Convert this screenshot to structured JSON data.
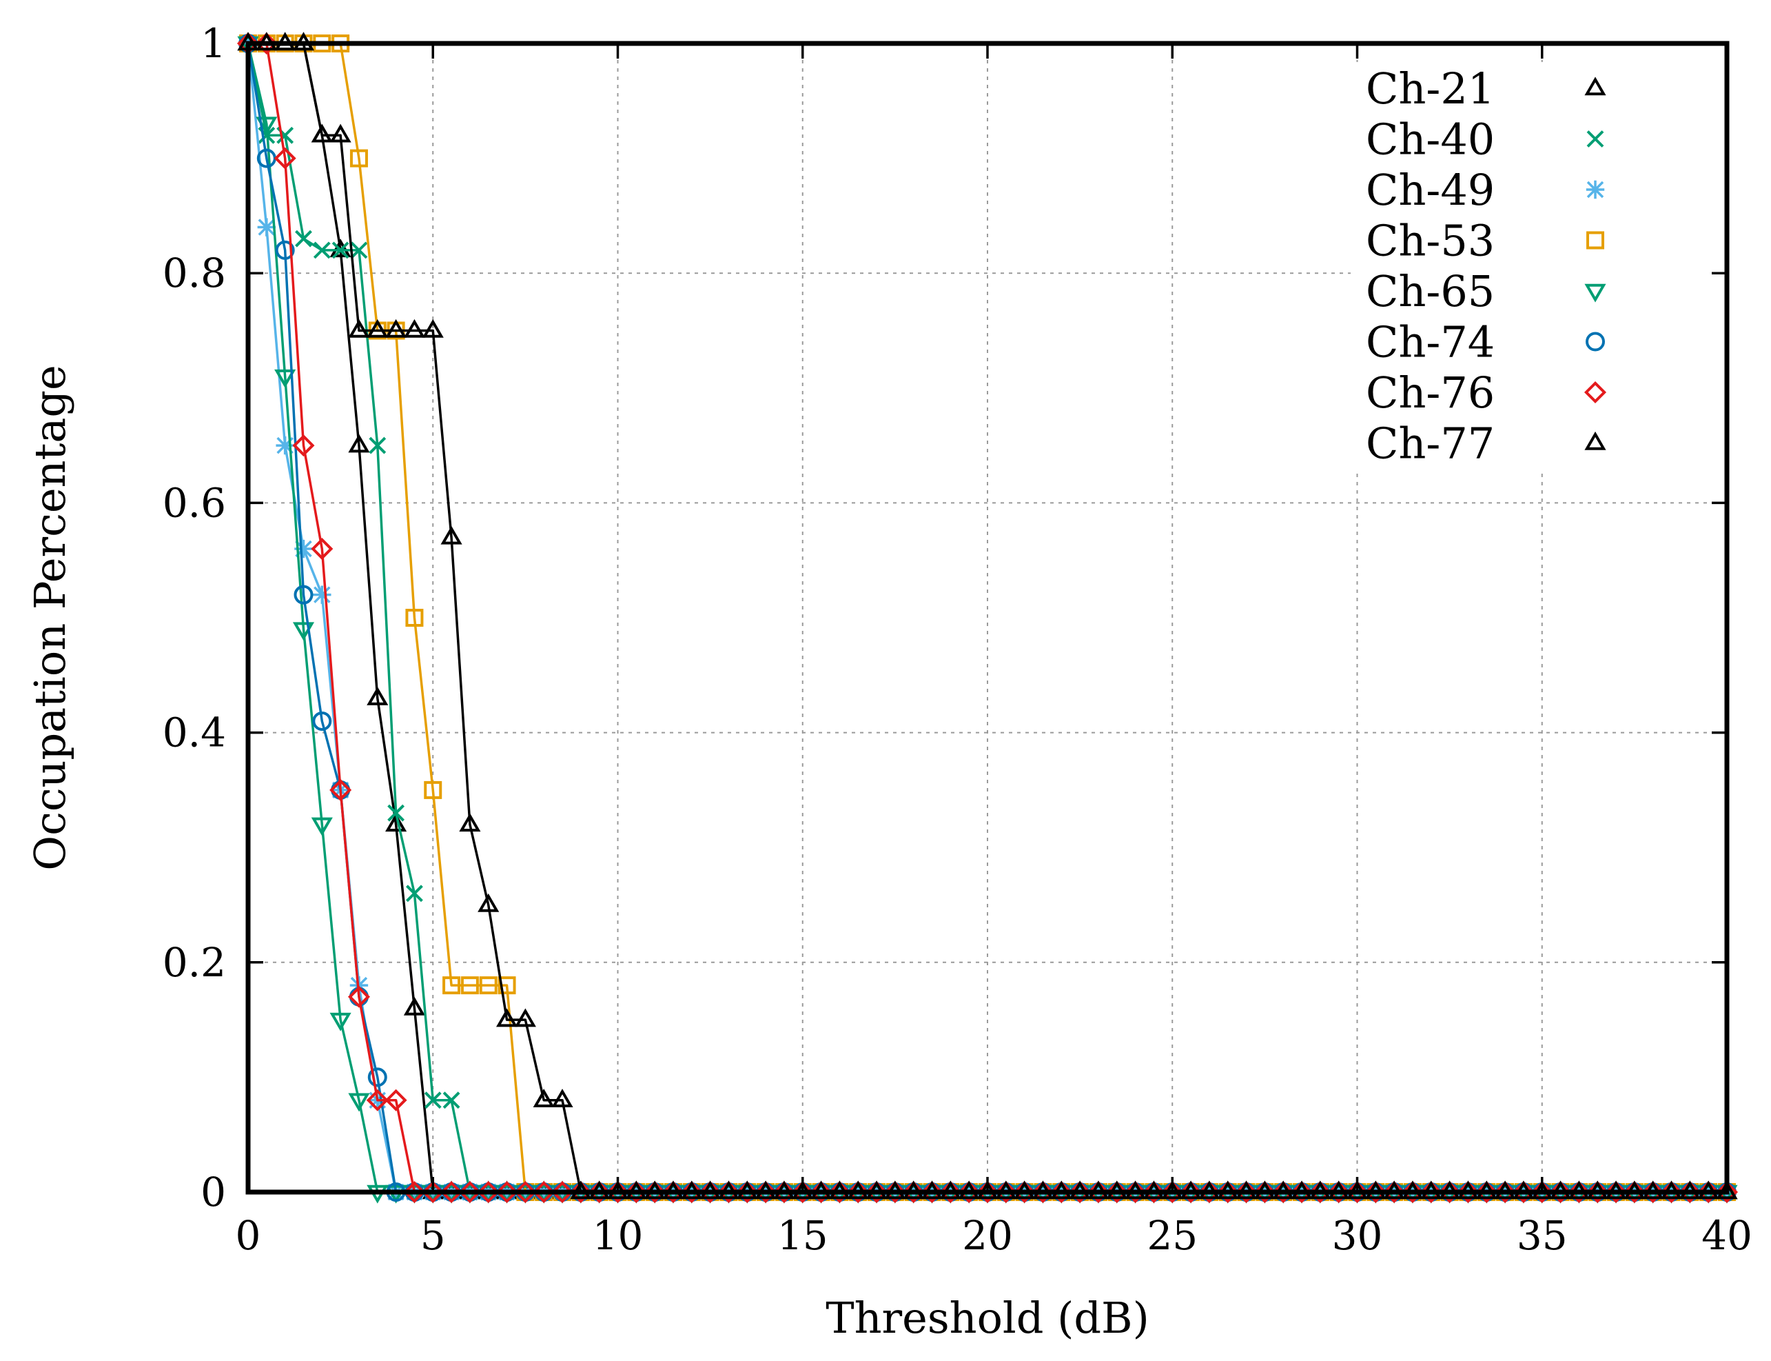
{
  "chart_data": {
    "type": "line",
    "title": "",
    "xlabel": "Threshold (dB)",
    "ylabel": "Occupation Percentage",
    "xlim": [
      0,
      40
    ],
    "ylim": [
      0,
      1
    ],
    "xticks": [
      0,
      5,
      10,
      15,
      20,
      25,
      30,
      35,
      40
    ],
    "xtick_labels": [
      "0",
      "5",
      "10",
      "15",
      "20",
      "25",
      "30",
      "35",
      "40"
    ],
    "yticks": [
      0,
      0.2,
      0.4,
      0.6,
      0.8,
      1
    ],
    "ytick_labels": [
      "0",
      "0.2",
      "0.4",
      "0.6",
      "0.8",
      "1"
    ],
    "grid": true,
    "legend_position": "top-right",
    "x_step": 0.5,
    "series": [
      {
        "name": "Ch-21",
        "color": "#000000",
        "marker": "triangle-up",
        "values": [
          1,
          1,
          1,
          1,
          0.92,
          0.82,
          0.65,
          0.43,
          0.32,
          0.16,
          0,
          0,
          0,
          0,
          0,
          0,
          0,
          0,
          0,
          0,
          0,
          0,
          0,
          0,
          0,
          0,
          0,
          0,
          0,
          0,
          0,
          0,
          0,
          0,
          0,
          0,
          0,
          0,
          0,
          0,
          0,
          0,
          0,
          0,
          0,
          0,
          0,
          0,
          0,
          0,
          0,
          0,
          0,
          0,
          0,
          0,
          0,
          0,
          0,
          0,
          0,
          0,
          0,
          0,
          0,
          0,
          0,
          0,
          0,
          0,
          0,
          0,
          0,
          0,
          0,
          0,
          0,
          0,
          0,
          0,
          0
        ]
      },
      {
        "name": "Ch-40",
        "color": "#009E73",
        "marker": "x",
        "values": [
          1,
          0.92,
          0.92,
          0.83,
          0.82,
          0.82,
          0.82,
          0.65,
          0.33,
          0.26,
          0.08,
          0.08,
          0,
          0,
          0,
          0,
          0,
          0,
          0,
          0,
          0,
          0,
          0,
          0,
          0,
          0,
          0,
          0,
          0,
          0,
          0,
          0,
          0,
          0,
          0,
          0,
          0,
          0,
          0,
          0,
          0,
          0,
          0,
          0,
          0,
          0,
          0,
          0,
          0,
          0,
          0,
          0,
          0,
          0,
          0,
          0,
          0,
          0,
          0,
          0,
          0,
          0,
          0,
          0,
          0,
          0,
          0,
          0,
          0,
          0,
          0,
          0,
          0,
          0,
          0,
          0,
          0,
          0,
          0,
          0,
          0
        ]
      },
      {
        "name": "Ch-49",
        "color": "#56B4E9",
        "marker": "star",
        "values": [
          1,
          0.84,
          0.65,
          0.56,
          0.52,
          0.35,
          0.18,
          0.08,
          0,
          0,
          0,
          0,
          0,
          0,
          0,
          0,
          0,
          0,
          0,
          0,
          0,
          0,
          0,
          0,
          0,
          0,
          0,
          0,
          0,
          0,
          0,
          0,
          0,
          0,
          0,
          0,
          0,
          0,
          0,
          0,
          0,
          0,
          0,
          0,
          0,
          0,
          0,
          0,
          0,
          0,
          0,
          0,
          0,
          0,
          0,
          0,
          0,
          0,
          0,
          0,
          0,
          0,
          0,
          0,
          0,
          0,
          0,
          0,
          0,
          0,
          0,
          0,
          0,
          0,
          0,
          0,
          0,
          0,
          0,
          0,
          0
        ]
      },
      {
        "name": "Ch-53",
        "color": "#E69F00",
        "marker": "square",
        "values": [
          1,
          1,
          1,
          1,
          1,
          1,
          0.9,
          0.75,
          0.75,
          0.5,
          0.35,
          0.18,
          0.18,
          0.18,
          0.18,
          0,
          0,
          0,
          0,
          0,
          0,
          0,
          0,
          0,
          0,
          0,
          0,
          0,
          0,
          0,
          0,
          0,
          0,
          0,
          0,
          0,
          0,
          0,
          0,
          0,
          0,
          0,
          0,
          0,
          0,
          0,
          0,
          0,
          0,
          0,
          0,
          0,
          0,
          0,
          0,
          0,
          0,
          0,
          0,
          0,
          0,
          0,
          0,
          0,
          0,
          0,
          0,
          0,
          0,
          0,
          0,
          0,
          0,
          0,
          0,
          0,
          0,
          0,
          0,
          0,
          0
        ]
      },
      {
        "name": "Ch-65",
        "color": "#009E73",
        "marker": "triangle-down",
        "values": [
          1,
          0.93,
          0.71,
          0.49,
          0.32,
          0.15,
          0.08,
          0,
          0,
          0,
          0,
          0,
          0,
          0,
          0,
          0,
          0,
          0,
          0,
          0,
          0,
          0,
          0,
          0,
          0,
          0,
          0,
          0,
          0,
          0,
          0,
          0,
          0,
          0,
          0,
          0,
          0,
          0,
          0,
          0,
          0,
          0,
          0,
          0,
          0,
          0,
          0,
          0,
          0,
          0,
          0,
          0,
          0,
          0,
          0,
          0,
          0,
          0,
          0,
          0,
          0,
          0,
          0,
          0,
          0,
          0,
          0,
          0,
          0,
          0,
          0,
          0,
          0,
          0,
          0,
          0,
          0,
          0,
          0,
          0,
          0
        ]
      },
      {
        "name": "Ch-74",
        "color": "#0072B2",
        "marker": "circle",
        "values": [
          1,
          0.9,
          0.82,
          0.52,
          0.41,
          0.35,
          0.17,
          0.1,
          0,
          0,
          0,
          0,
          0,
          0,
          0,
          0,
          0,
          0,
          0,
          0,
          0,
          0,
          0,
          0,
          0,
          0,
          0,
          0,
          0,
          0,
          0,
          0,
          0,
          0,
          0,
          0,
          0,
          0,
          0,
          0,
          0,
          0,
          0,
          0,
          0,
          0,
          0,
          0,
          0,
          0,
          0,
          0,
          0,
          0,
          0,
          0,
          0,
          0,
          0,
          0,
          0,
          0,
          0,
          0,
          0,
          0,
          0,
          0,
          0,
          0,
          0,
          0,
          0,
          0,
          0,
          0,
          0,
          0,
          0,
          0,
          0
        ]
      },
      {
        "name": "Ch-76",
        "color": "#E41A1C",
        "marker": "diamond",
        "values": [
          1,
          1,
          0.9,
          0.65,
          0.56,
          0.35,
          0.17,
          0.08,
          0.08,
          0,
          0,
          0,
          0,
          0,
          0,
          0,
          0,
          0,
          0,
          0,
          0,
          0,
          0,
          0,
          0,
          0,
          0,
          0,
          0,
          0,
          0,
          0,
          0,
          0,
          0,
          0,
          0,
          0,
          0,
          0,
          0,
          0,
          0,
          0,
          0,
          0,
          0,
          0,
          0,
          0,
          0,
          0,
          0,
          0,
          0,
          0,
          0,
          0,
          0,
          0,
          0,
          0,
          0,
          0,
          0,
          0,
          0,
          0,
          0,
          0,
          0,
          0,
          0,
          0,
          0,
          0,
          0,
          0,
          0,
          0,
          0
        ]
      },
      {
        "name": "Ch-77",
        "color": "#000000",
        "marker": "triangle-up",
        "values": [
          1,
          1,
          1,
          1,
          0.92,
          0.92,
          0.75,
          0.75,
          0.75,
          0.75,
          0.75,
          0.57,
          0.32,
          0.25,
          0.15,
          0.15,
          0.08,
          0.08,
          0,
          0,
          0,
          0,
          0,
          0,
          0,
          0,
          0,
          0,
          0,
          0,
          0,
          0,
          0,
          0,
          0,
          0,
          0,
          0,
          0,
          0,
          0,
          0,
          0,
          0,
          0,
          0,
          0,
          0,
          0,
          0,
          0,
          0,
          0,
          0,
          0,
          0,
          0,
          0,
          0,
          0,
          0,
          0,
          0,
          0,
          0,
          0,
          0,
          0,
          0,
          0,
          0,
          0,
          0,
          0,
          0,
          0,
          0,
          0,
          0,
          0,
          0
        ]
      }
    ]
  }
}
